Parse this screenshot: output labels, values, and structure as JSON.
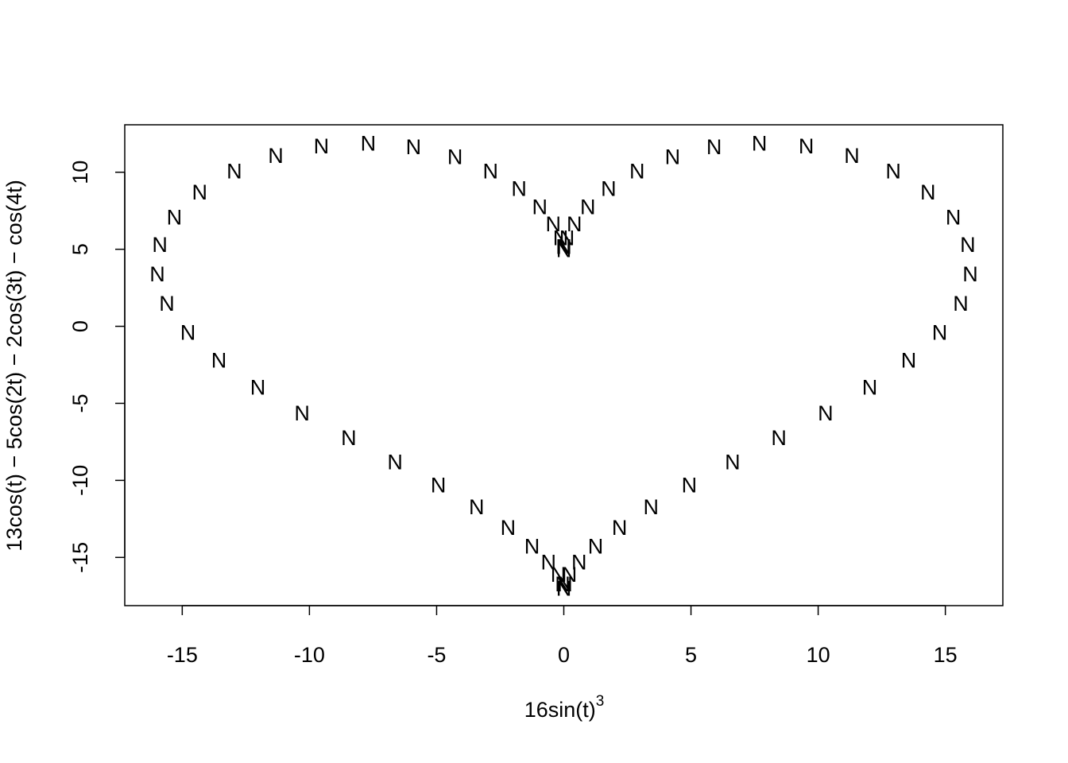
{
  "chart_data": {
    "type": "scatter",
    "x_label": {
      "base": "16sin(t)",
      "sup": "3"
    },
    "y_label": "13cos(t) − 5cos(2t) − 2cos(3t) − cos(4t)",
    "marker": "N",
    "color": "#000000",
    "x": [
      0,
      0.016,
      0.125,
      0.413,
      0.945,
      1.763,
      2.88,
      4.277,
      5.907,
      7.69,
      9.533,
      11.325,
      12.954,
      14.315,
      15.31,
      15.88,
      15.981,
      15.605,
      14.776,
      13.558,
      12.029,
      10.291,
      8.456,
      6.635,
      4.931,
      3.43,
      2.192,
      1.249,
      0.602,
      0.219,
      0.045,
      0.001,
      -0.001,
      -0.045,
      -0.219,
      -0.602,
      -1.249,
      -2.192,
      -3.43,
      -4.931,
      -6.635,
      -8.456,
      -10.291,
      -12.029,
      -13.558,
      -14.776,
      -15.605,
      -15.981,
      -15.88,
      -15.31,
      -14.315,
      -12.954,
      -11.325,
      -9.533,
      -7.69,
      -5.907,
      -4.277,
      -2.88,
      -1.763,
      -0.945,
      -0.413,
      -0.125,
      -0.016
    ],
    "y": [
      5,
      5.204,
      5.788,
      6.687,
      7.794,
      8.982,
      10.108,
      11.045,
      11.676,
      11.922,
      11.739,
      11.122,
      10.104,
      8.746,
      7.126,
      5.331,
      3.444,
      1.535,
      -0.347,
      -2.163,
      -3.915,
      -5.591,
      -7.202,
      -8.757,
      -10.256,
      -11.687,
      -13.016,
      -14.23,
      -15.275,
      -16.062,
      -16.693,
      -16.972,
      -16.972,
      -16.693,
      -16.062,
      -15.275,
      -14.23,
      -13.016,
      -11.687,
      -10.256,
      -8.757,
      -7.202,
      -5.591,
      -3.915,
      -2.163,
      -0.347,
      1.535,
      3.444,
      5.331,
      7.126,
      8.746,
      10.104,
      11.122,
      11.739,
      11.922,
      11.676,
      11.045,
      10.108,
      8.982,
      7.794,
      6.687,
      5.788,
      5.204
    ],
    "xlim": [
      -17.26,
      17.26
    ],
    "ylim": [
      -18.13,
      13.08
    ],
    "xticks": [
      -15,
      -10,
      -5,
      0,
      5,
      10,
      15
    ],
    "yticks": [
      -15,
      -10,
      -5,
      0,
      5,
      10
    ]
  }
}
